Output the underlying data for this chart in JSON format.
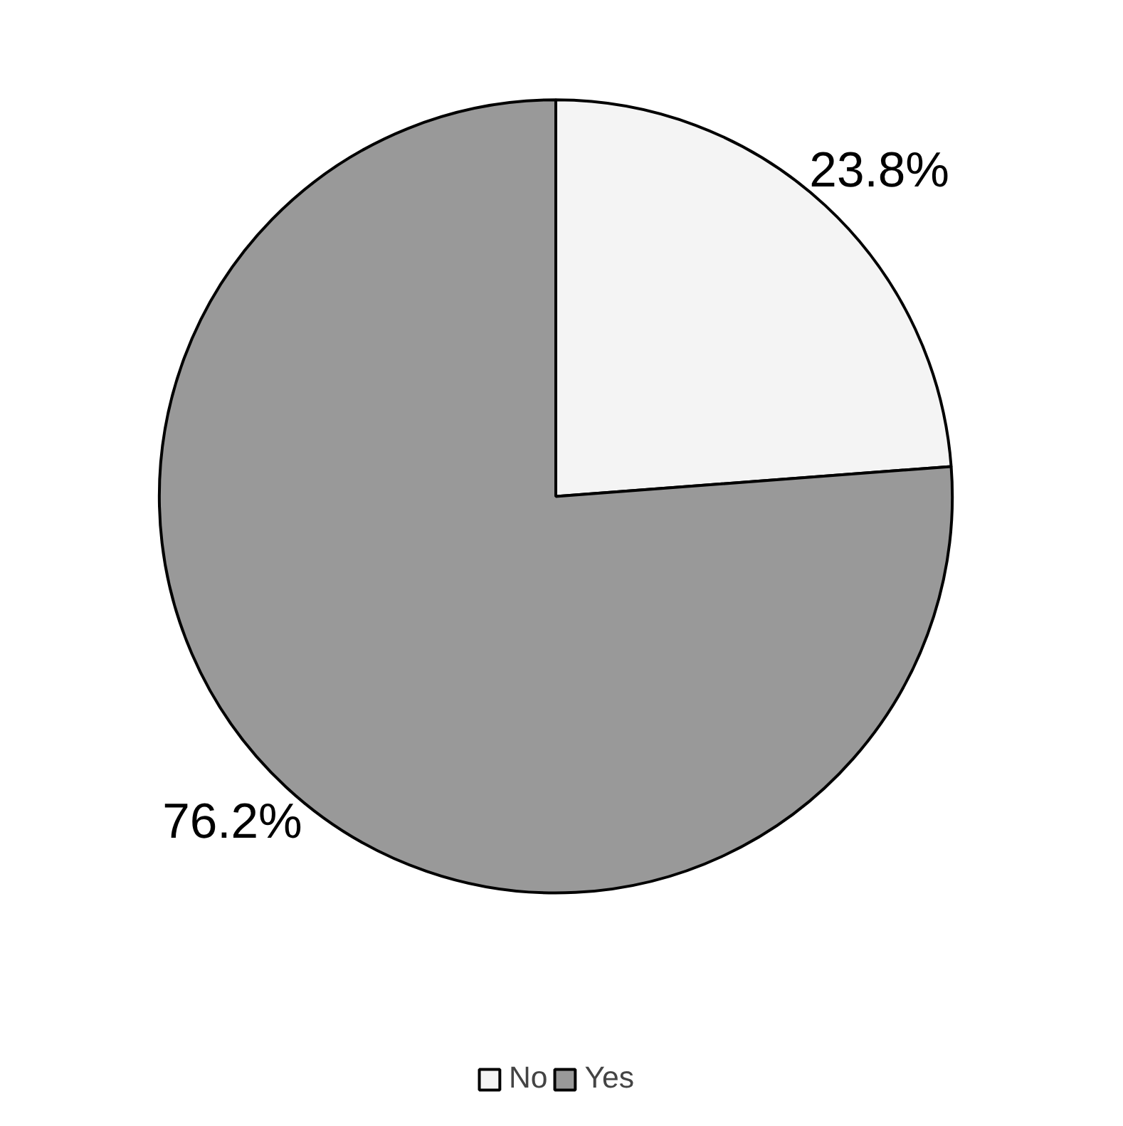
{
  "chart_data": {
    "type": "pie",
    "categories": [
      "No",
      "Yes"
    ],
    "values": [
      23.8,
      76.2
    ],
    "colors": [
      "#f4f4f4",
      "#999999"
    ],
    "value_labels": [
      "23.8%",
      "76.2%"
    ],
    "legend": "bottom"
  }
}
